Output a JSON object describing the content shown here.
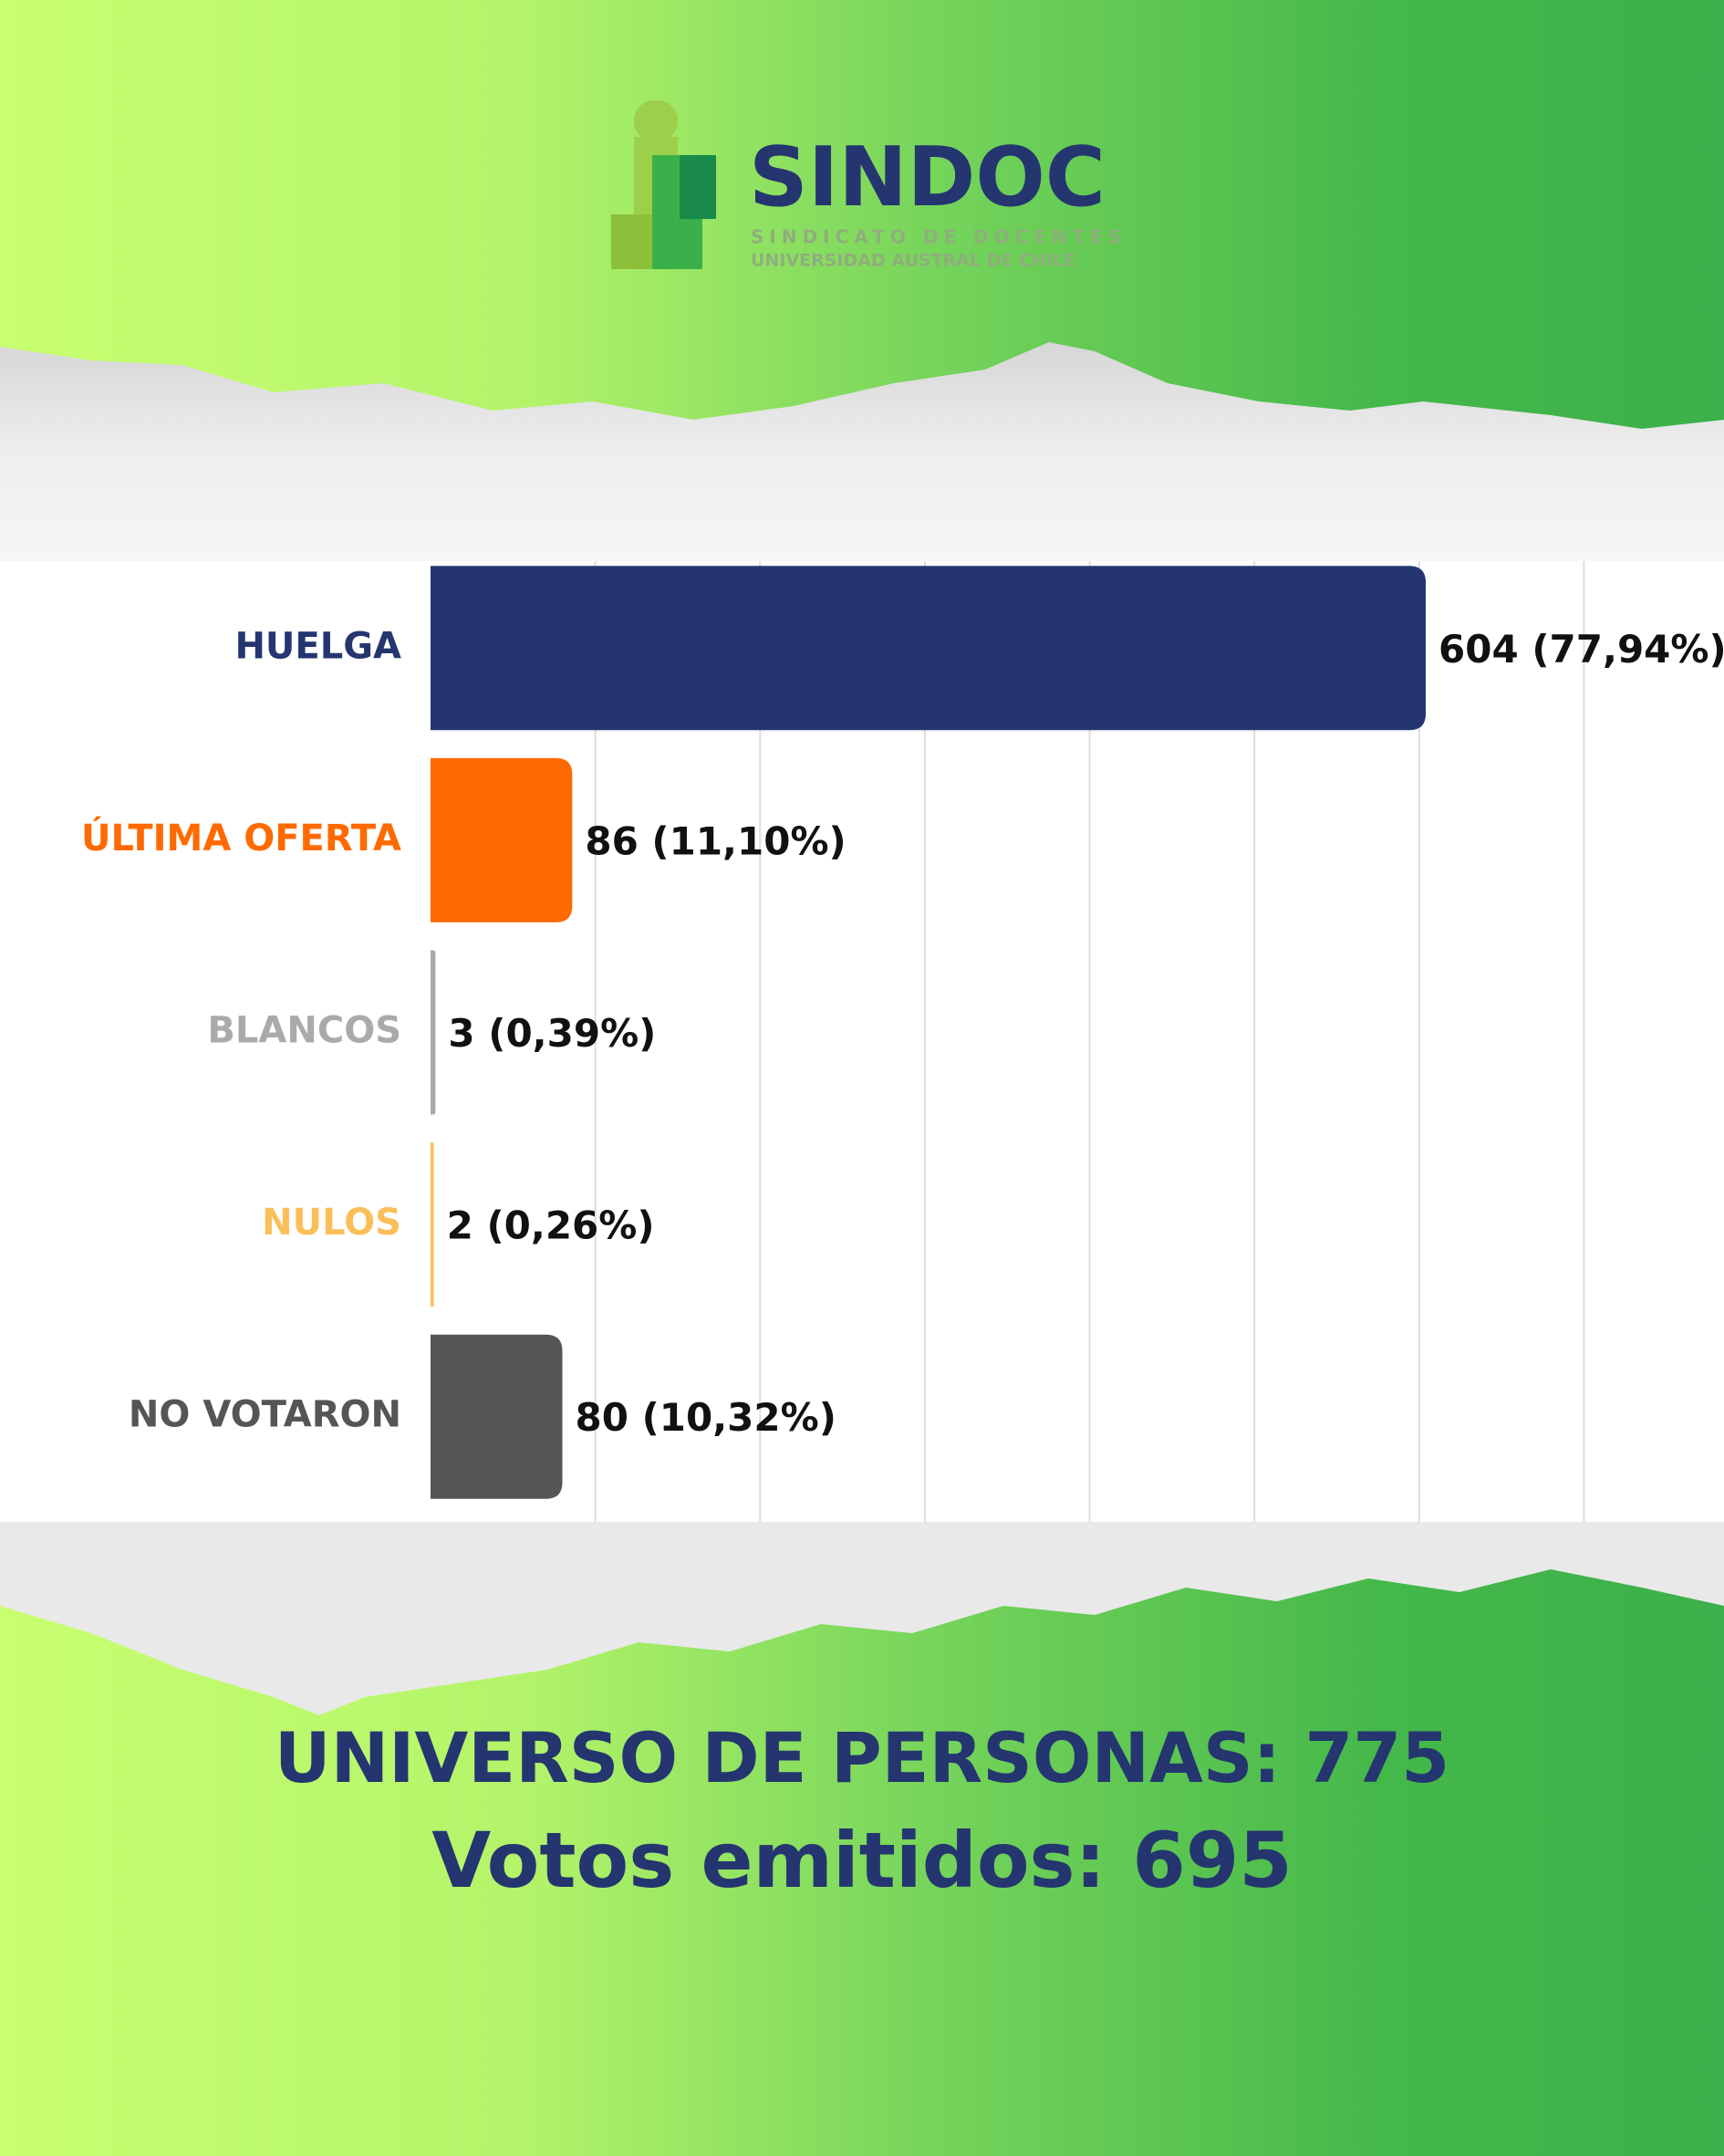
{
  "header": {
    "logo": "SINDOC",
    "subtitle_1": "SINDICATO DE DOCENTES",
    "subtitle_2": "UNIVERSIDAD AUSTRAL DE CHILE"
  },
  "chart_data": {
    "type": "bar",
    "orientation": "horizontal",
    "categories": [
      "HUELGA",
      "ÚLTIMA OFERTA",
      "BLANCOS",
      "NULOS",
      "NO VOTARON"
    ],
    "values": [
      604,
      86,
      3,
      2,
      80
    ],
    "value_labels": [
      "604 (77,94%)",
      "86 (11,10%)",
      "3 (0,39%)",
      "2 (0,26%)",
      "80 (10,32%)"
    ],
    "colors": [
      "#253570",
      "#ff6a00",
      "#aaaaaa",
      "#fbbf5a",
      "#555555"
    ],
    "xlim": [
      0,
      785
    ],
    "xticks": [
      100,
      200,
      300,
      400,
      500,
      600,
      700
    ],
    "grid": true
  },
  "footer": {
    "line_1": "UNIVERSO DE PERSONAS: 775",
    "line_2": "Votos emitidos: 695"
  }
}
